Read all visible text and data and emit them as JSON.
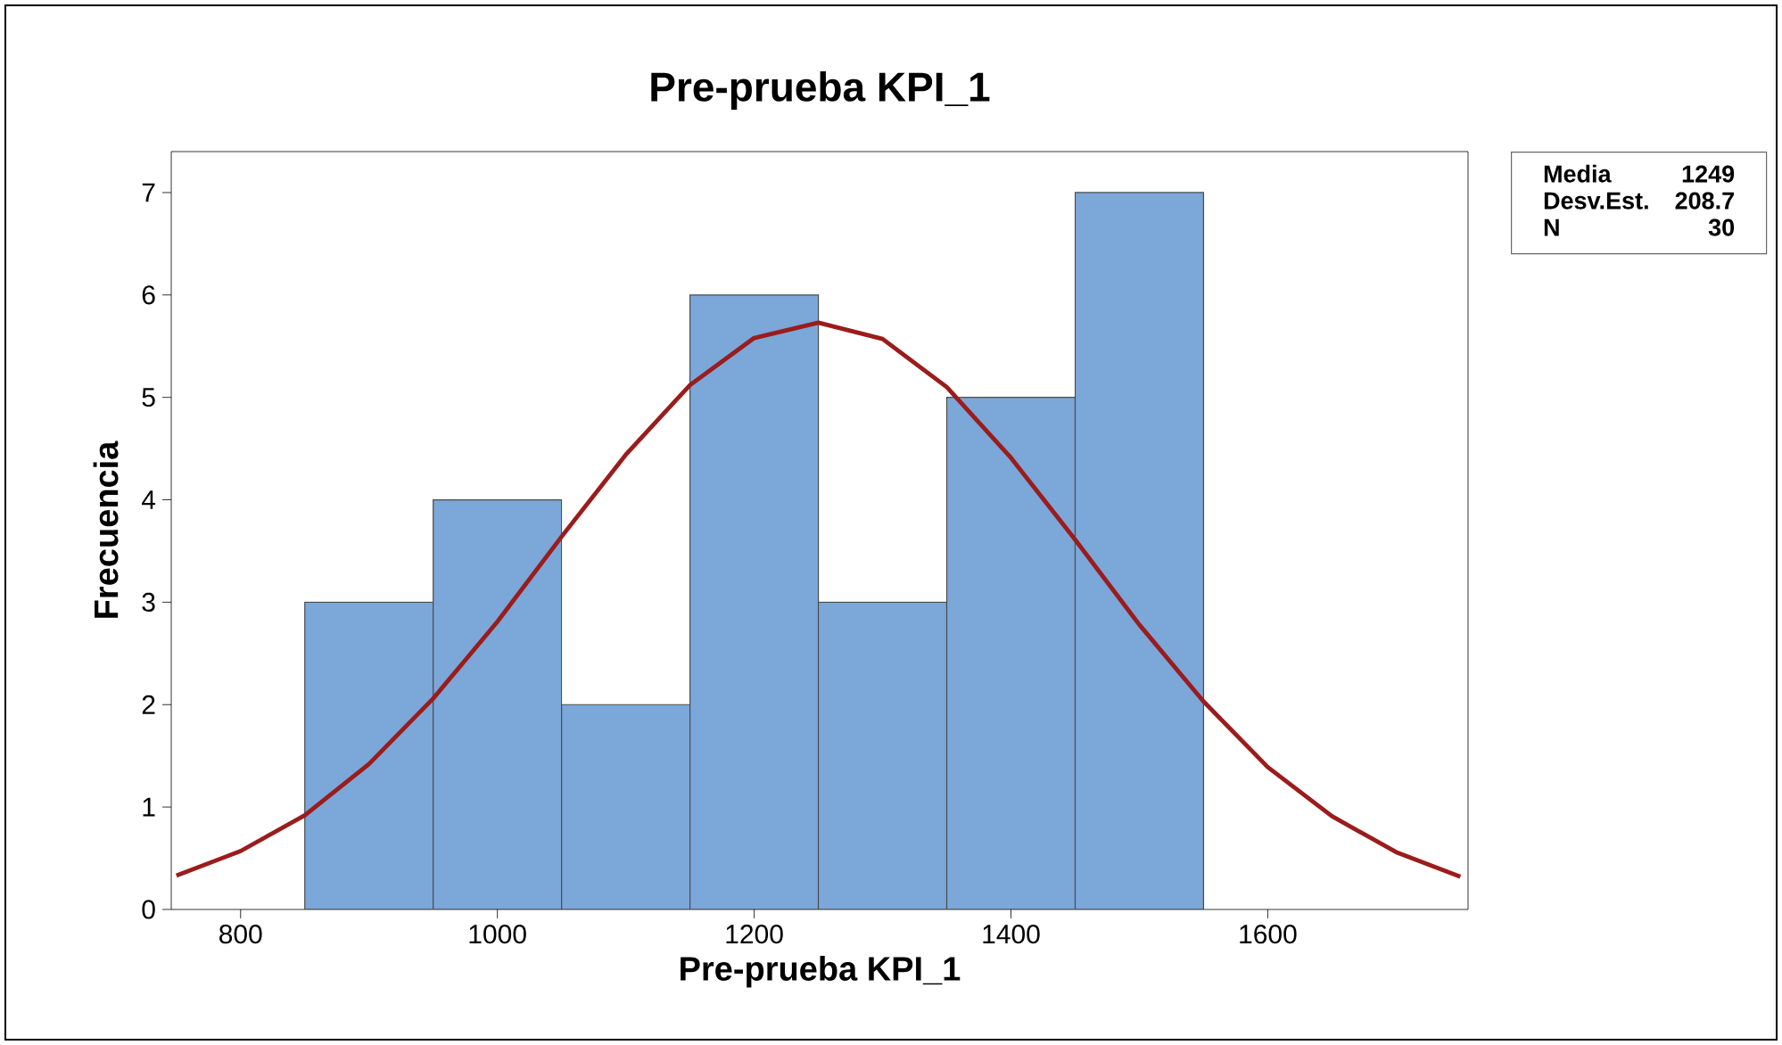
{
  "chart_data": {
    "type": "histogram",
    "title": "Pre-prueba KPI_1",
    "xlabel": "Pre-prueba KPI_1",
    "ylabel": "Frecuencia",
    "bins": [
      850,
      950,
      1050,
      1150,
      1250,
      1350,
      1450,
      1550
    ],
    "values": [
      3,
      4,
      2,
      6,
      3,
      5,
      7
    ],
    "color": "#7ba7d9",
    "series": [
      {
        "type": "line",
        "color": "#9b1c1c",
        "x": [
          750,
          800,
          850,
          900,
          950,
          1000,
          1050,
          1100,
          1150,
          1200,
          1250,
          1300,
          1350,
          1400,
          1450,
          1500,
          1550,
          1600,
          1650,
          1700,
          1750
        ],
        "values": [
          0.33,
          0.57,
          0.92,
          1.42,
          2.06,
          2.81,
          3.64,
          4.44,
          5.12,
          5.58,
          5.73,
          5.57,
          5.1,
          4.41,
          3.61,
          2.78,
          2.03,
          1.39,
          0.91,
          0.56,
          0.32
        ]
      }
    ],
    "xlim": [
      746,
      1756
    ],
    "ylim": [
      0,
      7.4
    ],
    "xticks": [
      800,
      1000,
      1200,
      1400,
      1600
    ],
    "yticks": [
      0,
      1,
      2,
      3,
      4,
      5,
      6,
      7
    ],
    "grid": false,
    "annotations": [
      "Media",
      "1249",
      "Desv.Est.",
      "208.7",
      "N",
      "30"
    ]
  }
}
